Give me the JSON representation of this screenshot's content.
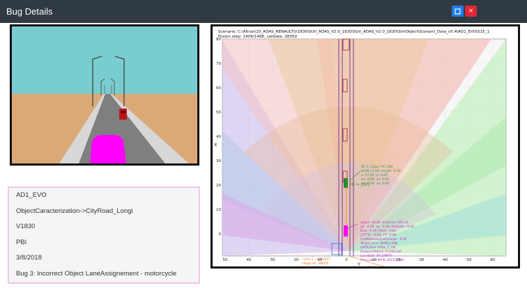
{
  "window": {
    "title": "Bug Details",
    "maximize_icon": "maximize-icon",
    "close_icon": "close-icon",
    "close_glyph": "×"
  },
  "simulation": {
    "sky_color": "#79cdd0",
    "ground_color": "#dba978",
    "road_color": "#7f7f7f",
    "ego_car_color": "#ff00ff",
    "target_vehicle_color": "#c0141c"
  },
  "plot": {
    "scenario_text": "Scenario: C:\\Altran\\25_ADAS_RENAULT\\V1830\\SUV_ADAS_V2.0_1830\\SUV_ADAS_V2.0_1830\\SimObject\\Scenarii_Data_v5.4\\AD1_EVO\\S15_1",
    "fusion_text": "Fusion step: 1409/1498, calldate: 28350",
    "x_axis_letter": "Y",
    "y_axis_letter": "X",
    "x_ticks": [
      "50",
      "40",
      "30",
      "20",
      "10",
      "0",
      "-10",
      "-20",
      "-30",
      "-40",
      "-50",
      "-60"
    ],
    "y_ticks": [
      "80",
      "70",
      "60",
      "50",
      "40",
      "30",
      "20",
      "10",
      "0"
    ],
    "object_label": "ID = [00]",
    "object_info": [
      "ID: 1, Class: PC_OBJ",
      "width: 2.00, length: 4.50",
      "x: 17.82, y: 0.00",
      "vx: 0.00, vy: 0.00",
      "ax: 0.00, ay: 0.00"
    ],
    "ego_info": [
      "speed: 18.00, distance: 500.34",
      "ax: -0.00, ay: -0.00, YawRate: -0.00",
      "Kick: -0.00, Pitch: -0.00",
      "CT/TTC: -0.00, TT: -0.00",
      "ConfidenceLaneChange: -0.00",
      "Target Lane: MAIN_LANE",
      "OPTILEVel: STILL_C_O8",
      "DistanceToEnd: 17.49/5.00",
      "LaneSide: OF_EMPTY",
      "Maneuver: MAIN_KEEP_LANE"
    ],
    "bottom_labels": [
      "circle 1 - axe LEFT",
      "chkpt n6 - WRITE"
    ]
  },
  "info": {
    "project": "AD1_EVO",
    "feature": "ObjectCaracterization->CityRoad_Longi",
    "version": "V1830",
    "category": "PBI",
    "date": "3/8/2018",
    "bug": "Bug 3: Incorrect Object LaneAssignement - motorcycle"
  }
}
